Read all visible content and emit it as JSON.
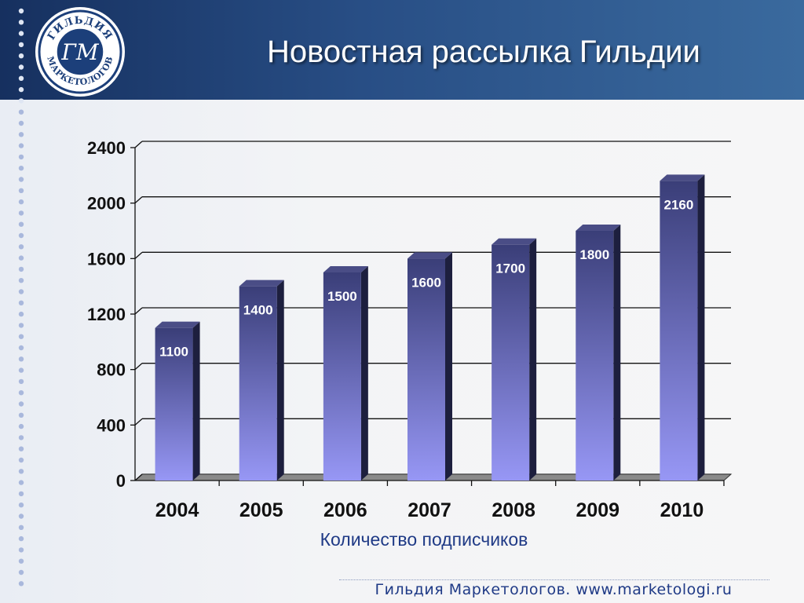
{
  "slide": {
    "title": "Новостная рассылка Гильдии",
    "footer": "Гильдия Маркетологов. www.marketologi.ru",
    "logo": {
      "top_text": "ГИЛЬДИЯ",
      "bottom_text": "МАРКЕТОЛОГОВ",
      "monogram": "ГМ"
    }
  },
  "colors": {
    "header_dark": "#16305f",
    "header_light": "#3a6a9e",
    "bar_top": "#3a3e78",
    "bar_bottom": "#9797f5",
    "caption": "#1f3a86"
  },
  "chart_data": {
    "type": "bar",
    "categories": [
      "2004",
      "2005",
      "2006",
      "2007",
      "2008",
      "2009",
      "2010"
    ],
    "values": [
      1100,
      1400,
      1500,
      1600,
      1700,
      1800,
      2160
    ],
    "data_labels": [
      "1100",
      "1400",
      "1500",
      "1600",
      "1700",
      "1800",
      "2160"
    ],
    "xlabel": "Количество подписчиков",
    "ylabel": "",
    "ylim": [
      0,
      2400
    ],
    "yticks": [
      0,
      400,
      800,
      1200,
      1600,
      2000,
      2400
    ],
    "grid": true,
    "style": "3d-column"
  }
}
